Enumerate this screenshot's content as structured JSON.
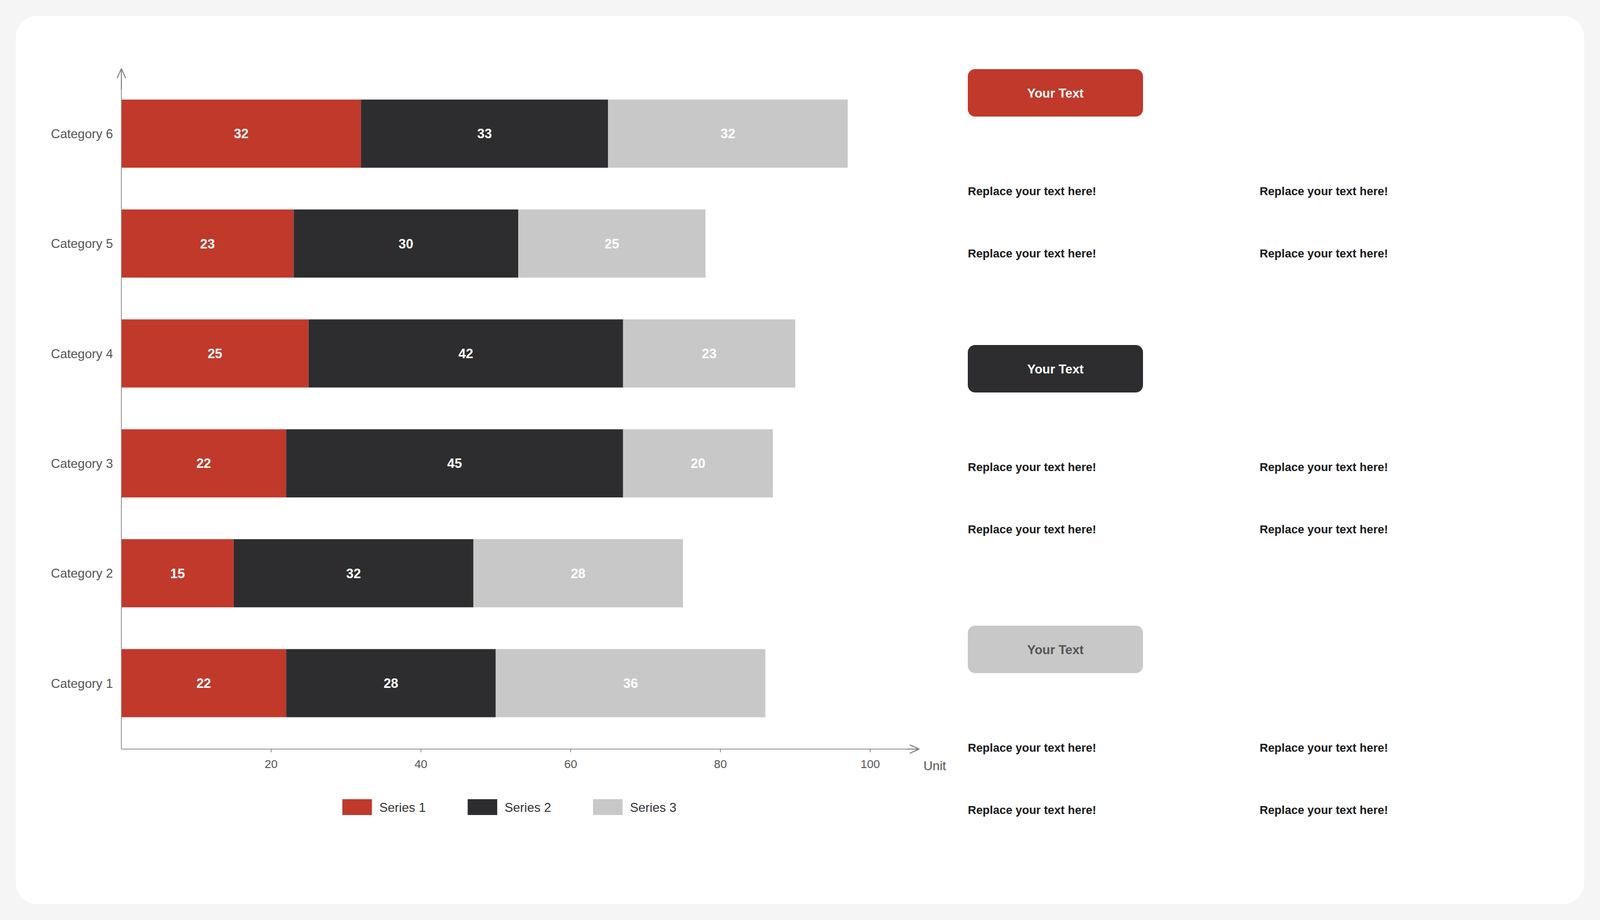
{
  "chart_data": {
    "type": "bar",
    "orientation": "horizontal",
    "stacked": true,
    "data_labels": true,
    "grid": false,
    "legend": "bottom",
    "categories": [
      "Category 1",
      "Category 2",
      "Category 3",
      "Category 4",
      "Category 5",
      "Category 6"
    ],
    "series": [
      {
        "name": "Series 1",
        "color": "#c0392b",
        "values": [
          22,
          15,
          22,
          25,
          23,
          32
        ]
      },
      {
        "name": "Series 2",
        "color": "#2d2d2f",
        "values": [
          28,
          32,
          45,
          42,
          30,
          33
        ]
      },
      {
        "name": "Series 3",
        "color": "#c8c8c8",
        "values": [
          36,
          28,
          20,
          23,
          25,
          32
        ]
      }
    ],
    "xlim": [
      0,
      105
    ],
    "xticks": [
      20,
      40,
      60,
      80,
      100
    ],
    "xlabel": "Unit",
    "annotations": [
      [
        "Your Text",
        "Replace your text here!",
        "Replace your text here!",
        "Replace your text here!",
        "Replace your text here!"
      ],
      [
        "Your Text",
        "Replace your text here!",
        "Replace your text here!",
        "Replace your text here!",
        "Replace your text here!"
      ],
      [
        "Your Text",
        "Replace your text here!",
        "Replace your text here!",
        "Replace your text here!",
        "Replace your text here!"
      ]
    ]
  }
}
